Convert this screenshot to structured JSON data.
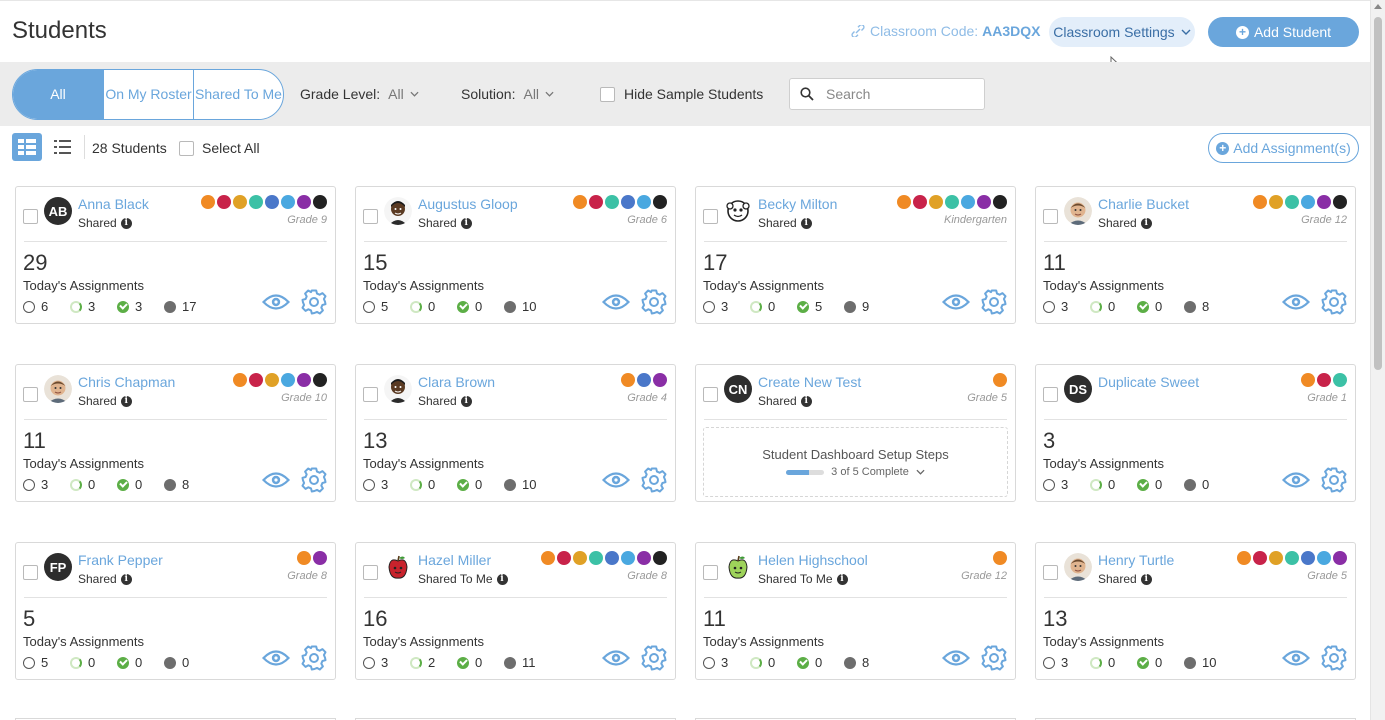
{
  "header": {
    "title": "Students",
    "classroom_code_label": "Classroom Code:",
    "classroom_code": "AA3DQX",
    "settings_label": "Classroom Settings",
    "add_student_label": "Add Student"
  },
  "filters": {
    "tabs": [
      "All",
      "On My Roster",
      "Shared To Me"
    ],
    "grade_level_label": "Grade Level:",
    "grade_level_value": "All",
    "solution_label": "Solution:",
    "solution_value": "All",
    "hide_sample_label": "Hide Sample Students",
    "search_placeholder": "Search"
  },
  "toolbar": {
    "student_count": "28 Students",
    "select_all_label": "Select All",
    "add_assignment_label": "Add Assignment(s)"
  },
  "labels": {
    "today": "Today's Assignments"
  },
  "colors": {
    "accent": "#6aa6dc",
    "done": "#5cae46"
  },
  "students": [
    {
      "name": "Anna Black",
      "initials": "AB",
      "avatar": "initials",
      "status": "Shared",
      "grade": "Grade 9",
      "count": "29",
      "stats": [
        "6",
        "3",
        "3",
        "17"
      ],
      "icons": [
        "#f08a24",
        "#c8234a",
        "#e0a126",
        "#3cc1a6",
        "#4a77c9",
        "#4aa8e0",
        "#8a2ea6",
        "#222"
      ]
    },
    {
      "name": "Augustus Gloop",
      "initials": "",
      "avatar": "face-dark",
      "status": "Shared",
      "grade": "Grade 6",
      "count": "15",
      "stats": [
        "5",
        "0",
        "0",
        "10"
      ],
      "icons": [
        "#f08a24",
        "#c8234a",
        "#3cc1a6",
        "#4a77c9",
        "#4aa8e0",
        "#222"
      ]
    },
    {
      "name": "Becky Milton",
      "initials": "",
      "avatar": "face-cartoon",
      "status": "Shared",
      "grade": "Kindergarten",
      "count": "17",
      "stats": [
        "3",
        "0",
        "5",
        "9"
      ],
      "icons": [
        "#f08a24",
        "#c8234a",
        "#e0a126",
        "#3cc1a6",
        "#4aa8e0",
        "#8a2ea6",
        "#222"
      ]
    },
    {
      "name": "Charlie Bucket",
      "initials": "",
      "avatar": "face-photo",
      "status": "Shared",
      "grade": "Grade 12",
      "count": "11",
      "stats": [
        "3",
        "0",
        "0",
        "8"
      ],
      "icons": [
        "#f08a24",
        "#e0a126",
        "#3cc1a6",
        "#4aa8e0",
        "#8a2ea6",
        "#222"
      ]
    },
    {
      "name": "Chris Chapman",
      "initials": "",
      "avatar": "face-photo",
      "status": "Shared",
      "grade": "Grade 10",
      "count": "11",
      "stats": [
        "3",
        "0",
        "0",
        "8"
      ],
      "icons": [
        "#f08a24",
        "#c8234a",
        "#e0a126",
        "#4aa8e0",
        "#8a2ea6",
        "#222"
      ]
    },
    {
      "name": "Clara Brown",
      "initials": "",
      "avatar": "face-dark",
      "status": "Shared",
      "grade": "Grade 4",
      "count": "13",
      "stats": [
        "3",
        "0",
        "0",
        "10"
      ],
      "icons": [
        "#f08a24",
        "#4a77c9",
        "#8a2ea6"
      ]
    },
    {
      "name": "Create New Test",
      "initials": "CN",
      "avatar": "initials",
      "status": "Shared",
      "grade": "Grade 5",
      "count": "",
      "stats": [],
      "icons": [
        "#f08a24"
      ],
      "setup": {
        "title": "Student Dashboard Setup Steps",
        "progress_text": "3 of 5 Complete",
        "progress": 0.6
      }
    },
    {
      "name": "Duplicate Sweet",
      "initials": "DS",
      "avatar": "initials",
      "status": "",
      "grade": "Grade 1",
      "count": "3",
      "stats": [
        "3",
        "0",
        "0",
        "0"
      ],
      "icons": [
        "#f08a24",
        "#c8234a",
        "#3cc1a6"
      ]
    },
    {
      "name": "Frank Pepper",
      "initials": "FP",
      "avatar": "initials",
      "status": "Shared",
      "grade": "Grade 8",
      "count": "5",
      "stats": [
        "5",
        "0",
        "0",
        "0"
      ],
      "icons": [
        "#f08a24",
        "#8a2ea6"
      ]
    },
    {
      "name": "Hazel Miller",
      "initials": "",
      "avatar": "face-apple",
      "status": "Shared To Me",
      "grade": "Grade 8",
      "count": "16",
      "stats": [
        "3",
        "2",
        "0",
        "11"
      ],
      "icons": [
        "#f08a24",
        "#c8234a",
        "#e0a126",
        "#3cc1a6",
        "#4a77c9",
        "#4aa8e0",
        "#8a2ea6",
        "#222"
      ]
    },
    {
      "name": "Helen Highschool",
      "initials": "",
      "avatar": "face-green-apple",
      "status": "Shared To Me",
      "grade": "Grade 12",
      "count": "11",
      "stats": [
        "3",
        "0",
        "0",
        "8"
      ],
      "icons": [
        "#f08a24"
      ]
    },
    {
      "name": "Henry Turtle",
      "initials": "",
      "avatar": "face-photo",
      "status": "Shared",
      "grade": "Grade 5",
      "count": "13",
      "stats": [
        "3",
        "0",
        "0",
        "10"
      ],
      "icons": [
        "#f08a24",
        "#c8234a",
        "#e0a126",
        "#3cc1a6",
        "#4a77c9",
        "#4aa8e0",
        "#8a2ea6"
      ]
    }
  ]
}
